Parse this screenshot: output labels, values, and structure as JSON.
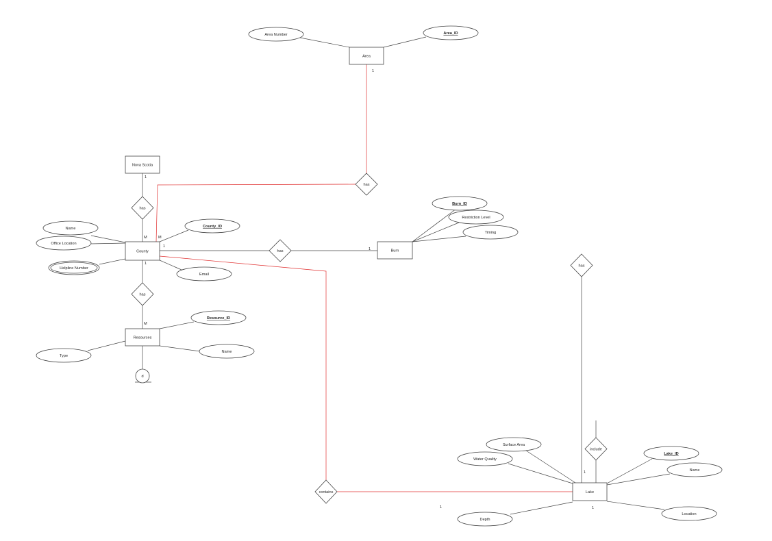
{
  "diagram": {
    "type": "er-diagram",
    "entities": {
      "area": "Area",
      "nova_scotia": "Nova Scotia",
      "county": "County",
      "burn": "Burn",
      "resources": "Resources",
      "lake": "Lake"
    },
    "attributes": {
      "area_number": "Area Number",
      "area_id": "Area_ID",
      "county_name": "Name",
      "office_location": "Office Location",
      "helpline_number": "Helpline Number",
      "county_id": "County_ID",
      "email": "Email",
      "burn_id": "Burn_ID",
      "restriction_level": "Restriction Level",
      "timing": "Timing",
      "resource_id": "Resource_ID",
      "resource_name": "Name",
      "type": "Type",
      "surface_area": "Surface Area",
      "water_quality": "Water Quality",
      "lake_id": "Lake_ID",
      "lake_name": "Name",
      "depth": "Depth",
      "location": "Location"
    },
    "relationships": {
      "area_county_has": "has",
      "ns_county_has": "has",
      "county_burn_has": "has",
      "county_resources_has": "has",
      "lake_has": "has",
      "lake_include": "include",
      "contains": "contains"
    },
    "specialization": "d",
    "cardinalities": {
      "area": "1",
      "nova_scotia": "1",
      "county_ns": "M",
      "county_area": "M",
      "county_burn": "1",
      "burn": "1",
      "county_resources": "1",
      "resources": "M",
      "lake_upper": "1",
      "lake_lower": "1",
      "contains": "1"
    },
    "colors": {
      "line": "#444444",
      "highlight_line": "#e03030"
    }
  }
}
